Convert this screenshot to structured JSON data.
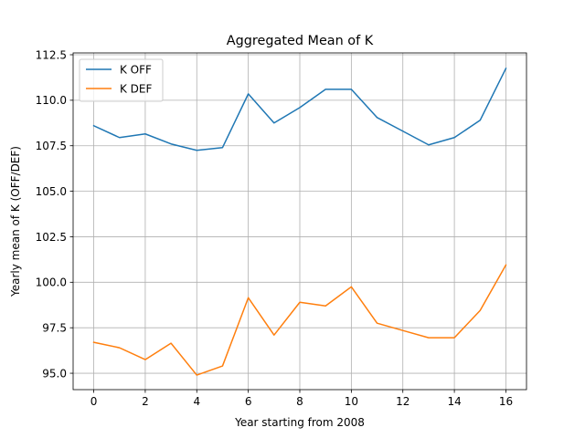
{
  "chart_data": {
    "type": "line",
    "title": "Aggregated Mean of K",
    "xlabel": "Year starting from 2008",
    "ylabel": "Yearly mean of K (OFF/DEF)",
    "x": [
      0,
      1,
      2,
      3,
      4,
      5,
      6,
      7,
      8,
      9,
      10,
      11,
      12,
      13,
      14,
      15,
      16
    ],
    "xlim": [
      -0.8,
      16.8
    ],
    "ylim": [
      94.1,
      112.6
    ],
    "xticks": [
      0,
      2,
      4,
      6,
      8,
      10,
      12,
      14,
      16
    ],
    "yticks": [
      95.0,
      97.5,
      100.0,
      102.5,
      105.0,
      107.5,
      110.0,
      112.5
    ],
    "xtick_labels": [
      "0",
      "2",
      "4",
      "6",
      "8",
      "10",
      "12",
      "14",
      "16"
    ],
    "ytick_labels": [
      "95.0",
      "97.5",
      "100.0",
      "102.5",
      "105.0",
      "107.5",
      "110.0",
      "112.5"
    ],
    "grid": true,
    "legend_position": "top-left",
    "series": [
      {
        "name": "K OFF",
        "color": "#1f77b4",
        "values": [
          108.6,
          107.95,
          108.15,
          107.6,
          107.25,
          107.4,
          110.35,
          108.75,
          109.6,
          110.6,
          110.6,
          109.05,
          108.3,
          107.55,
          107.95,
          108.9,
          111.75
        ]
      },
      {
        "name": "K DEF",
        "color": "#ff7f0e",
        "values": [
          96.7,
          96.4,
          95.75,
          96.65,
          94.9,
          95.4,
          99.15,
          97.1,
          98.9,
          98.7,
          99.75,
          97.75,
          97.35,
          96.95,
          96.95,
          98.45,
          100.95
        ]
      }
    ]
  }
}
